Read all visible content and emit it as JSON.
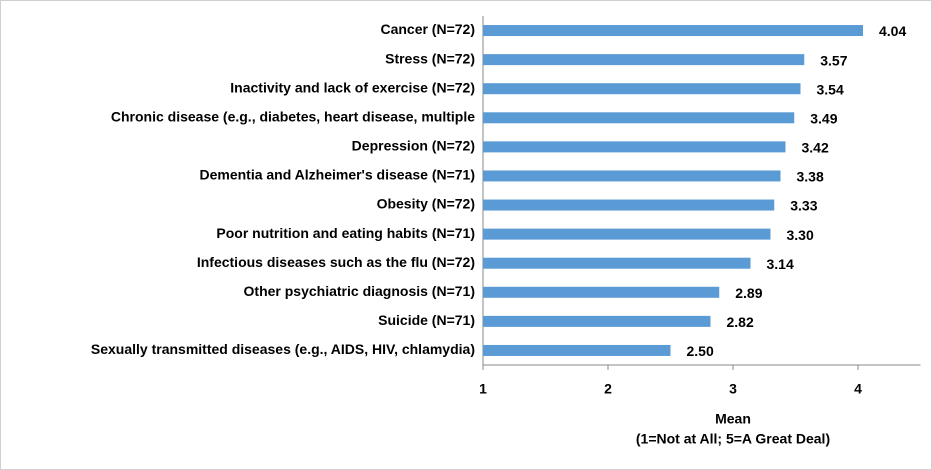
{
  "chart_data": {
    "type": "hbar",
    "categories": [
      "Cancer (N=72)",
      "Stress (N=72)",
      "Inactivity and lack of exercise (N=72)",
      "Chronic disease (e.g., diabetes, heart disease, multiple",
      "Depression (N=72)",
      "Dementia and Alzheimer's disease (N=71)",
      "Obesity (N=72)",
      "Poor nutrition and eating habits (N=71)",
      "Infectious diseases such as the flu (N=72)",
      "Other psychiatric diagnosis (N=71)",
      "Suicide (N=71)",
      "Sexually transmitted diseases (e.g., AIDS, HIV, chlamydia)"
    ],
    "values": [
      4.04,
      3.57,
      3.54,
      3.49,
      3.42,
      3.38,
      3.33,
      3.3,
      3.14,
      2.89,
      2.82,
      2.5
    ],
    "value_labels": [
      "4.04",
      "3.57",
      "3.54",
      "3.49",
      "3.42",
      "3.38",
      "3.33",
      "3.30",
      "3.14",
      "2.89",
      "2.82",
      "2.50"
    ],
    "color": "#5b9bd5",
    "xlim": [
      1,
      4.5
    ],
    "xticks": [
      1,
      2,
      3,
      4
    ],
    "xlabel": [
      "Mean",
      "(1=Not at All; 5=A Great Deal)"
    ],
    "grid": false
  }
}
